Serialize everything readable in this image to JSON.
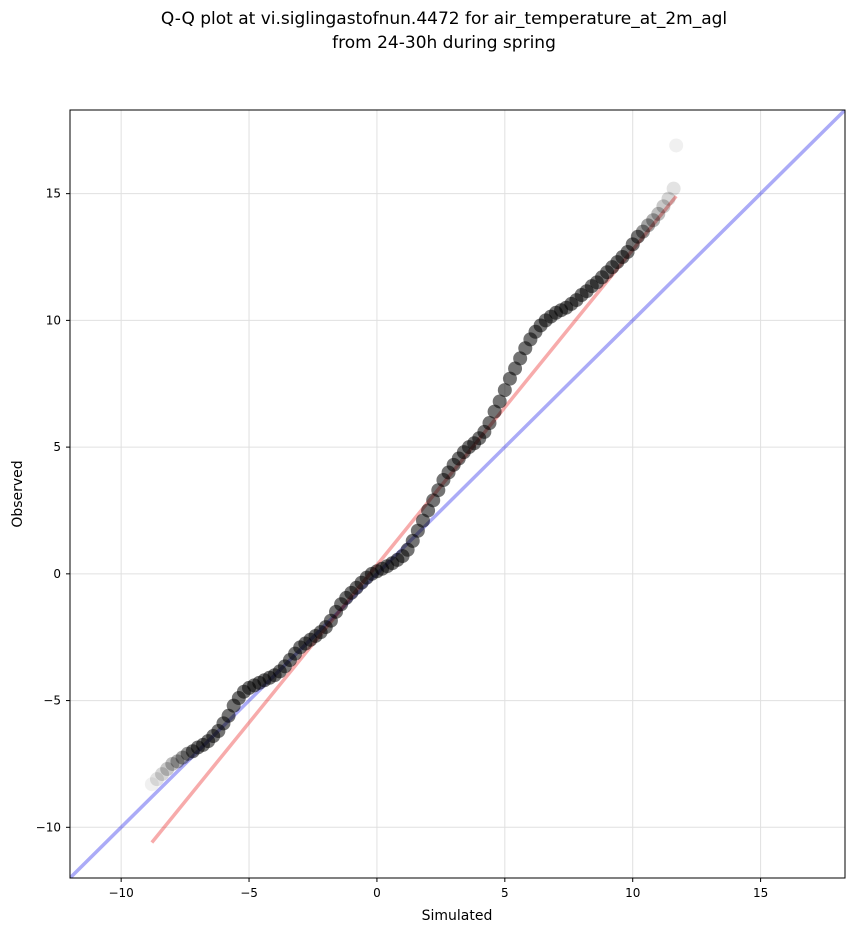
{
  "chart_data": {
    "type": "scatter",
    "title_lines": [
      "Q-Q plot at vi.siglingastofnun.4472 for air_temperature_at_2m_agl",
      "from 24-30h during spring"
    ],
    "xlabel": "Simulated",
    "ylabel": "Observed",
    "xlim": [
      -12,
      18.3
    ],
    "ylim": [
      -12,
      18.3
    ],
    "xticks": [
      -10,
      -5,
      0,
      5,
      10,
      15
    ],
    "yticks": [
      -10,
      -5,
      0,
      5,
      10,
      15
    ],
    "xtick_labels": [
      "−10",
      "−5",
      "0",
      "5",
      "10",
      "15"
    ],
    "ytick_labels": [
      "−10",
      "−5",
      "0",
      "5",
      "10",
      "15"
    ],
    "grid": true,
    "colors": {
      "points": "#000000",
      "identity_line": "#0000e6",
      "fit_line": "#e60000",
      "grid": "#e0e0e0"
    },
    "identity_line": {
      "points": [
        [
          -12,
          -12
        ],
        [
          18.3,
          18.3
        ]
      ]
    },
    "fit_line": {
      "points": [
        [
          -8.8,
          -10.6
        ],
        [
          11.7,
          14.9
        ]
      ]
    },
    "series": [
      {
        "x": [
          -8.8,
          -8.6,
          -8.4,
          -8.2,
          -8.0,
          -7.8,
          -7.6,
          -7.4,
          -7.2,
          -7.0,
          -6.8,
          -6.6,
          -6.4,
          -6.2,
          -6.0,
          -5.8,
          -5.6,
          -5.4,
          -5.2,
          -5.0,
          -4.8,
          -4.6,
          -4.4,
          -4.2,
          -4.0,
          -3.8,
          -3.6,
          -3.4,
          -3.2,
          -3.0,
          -2.8,
          -2.6,
          -2.4,
          -2.2,
          -2.0,
          -1.8,
          -1.6,
          -1.4,
          -1.2,
          -1.0,
          -0.8,
          -0.6,
          -0.4,
          -0.2,
          0.0,
          0.2,
          0.4,
          0.6,
          0.8,
          1.0,
          1.2,
          1.4,
          1.6,
          1.8,
          2.0,
          2.2,
          2.4,
          2.6,
          2.8,
          3.0,
          3.2,
          3.4,
          3.6,
          3.8,
          4.0,
          4.2,
          4.4,
          4.6,
          4.8,
          5.0,
          5.2,
          5.4,
          5.6,
          5.8,
          6.0,
          6.2,
          6.4,
          6.6,
          6.8,
          7.0,
          7.2,
          7.4,
          7.6,
          7.8,
          8.0,
          8.2,
          8.4,
          8.6,
          8.8,
          9.0,
          9.2,
          9.4,
          9.6,
          9.8,
          10.0,
          10.2,
          10.4,
          10.6,
          10.8,
          11.0,
          11.2,
          11.4,
          11.6,
          11.7
        ],
        "y": [
          -8.3,
          -8.1,
          -7.9,
          -7.7,
          -7.5,
          -7.4,
          -7.25,
          -7.1,
          -7.0,
          -6.85,
          -6.75,
          -6.6,
          -6.4,
          -6.2,
          -5.9,
          -5.6,
          -5.2,
          -4.9,
          -4.65,
          -4.5,
          -4.4,
          -4.3,
          -4.2,
          -4.1,
          -4.0,
          -3.85,
          -3.65,
          -3.4,
          -3.15,
          -2.9,
          -2.75,
          -2.6,
          -2.45,
          -2.3,
          -2.1,
          -1.85,
          -1.5,
          -1.2,
          -0.95,
          -0.75,
          -0.55,
          -0.35,
          -0.15,
          0.0,
          0.1,
          0.2,
          0.3,
          0.42,
          0.55,
          0.7,
          0.95,
          1.3,
          1.7,
          2.1,
          2.5,
          2.9,
          3.3,
          3.7,
          4.0,
          4.3,
          4.55,
          4.8,
          5.0,
          5.15,
          5.35,
          5.6,
          5.95,
          6.4,
          6.8,
          7.25,
          7.7,
          8.1,
          8.5,
          8.9,
          9.25,
          9.55,
          9.8,
          10.0,
          10.15,
          10.3,
          10.4,
          10.5,
          10.65,
          10.8,
          11.0,
          11.15,
          11.35,
          11.5,
          11.7,
          11.9,
          12.1,
          12.3,
          12.5,
          12.7,
          13.0,
          13.3,
          13.5,
          13.75,
          13.95,
          14.2,
          14.5,
          14.8,
          15.2,
          16.9
        ]
      }
    ]
  }
}
